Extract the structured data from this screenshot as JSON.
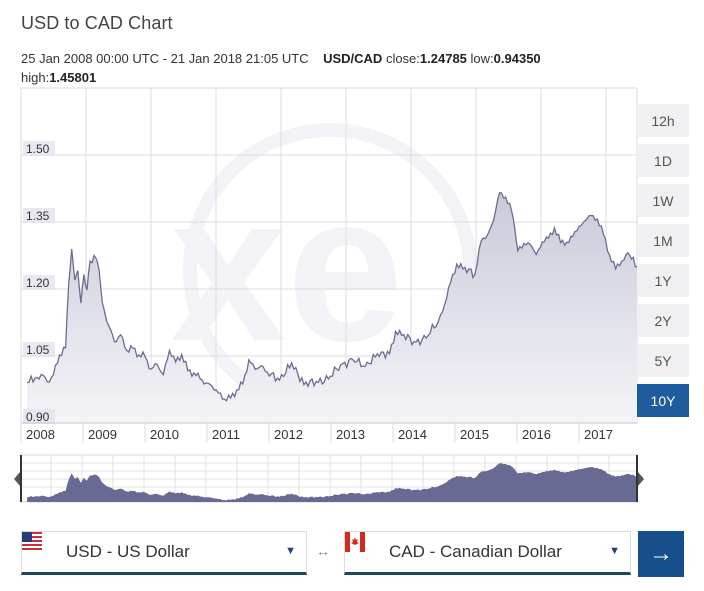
{
  "header": {
    "title": "USD to CAD Chart",
    "range_text": "25 Jan 2008 00:00 UTC - 21 Jan 2018 21:05 UTC",
    "pair": "USD/CAD",
    "close_label": "close:",
    "close_value": "1.24785",
    "low_label": "low:",
    "low_value": "0.94350",
    "high_label": "high:",
    "high_value": "1.45801"
  },
  "range_buttons": [
    {
      "label": "12h",
      "active": false
    },
    {
      "label": "1D",
      "active": false
    },
    {
      "label": "1W",
      "active": false
    },
    {
      "label": "1M",
      "active": false
    },
    {
      "label": "1Y",
      "active": false
    },
    {
      "label": "2Y",
      "active": false
    },
    {
      "label": "5Y",
      "active": false
    },
    {
      "label": "10Y",
      "active": true
    }
  ],
  "converter": {
    "from": {
      "code": "USD",
      "label": "USD - US Dollar",
      "flag": "us-flag-icon"
    },
    "swap_symbol": "↔",
    "to": {
      "code": "CAD",
      "label": "CAD - Canadian Dollar",
      "flag": "ca-flag-icon"
    },
    "go_symbol": "→",
    "caret": "▼"
  },
  "colors": {
    "line": "#6b6d8f",
    "fill_top": "#c9cad9",
    "fill_bottom": "#f4f4f8",
    "navigator_fill": "#686a94",
    "active_button": "#1f5c9e",
    "grid": "#dddddd",
    "ylabel_bg": "#e4e4f0"
  },
  "chart_data": {
    "type": "area",
    "title": "USD to CAD Chart",
    "xlabel": "",
    "ylabel": "",
    "ylim": [
      0.9,
      1.55
    ],
    "y_ticks": [
      "0.90",
      "1.05",
      "1.20",
      "1.35",
      "1.50"
    ],
    "x_ticks": [
      "2008",
      "2009",
      "2010",
      "2011",
      "2012",
      "2013",
      "2014",
      "2015",
      "2016",
      "2017"
    ],
    "grid": true,
    "legend": "none",
    "series": [
      {
        "name": "USD/CAD close",
        "x": [
          2008.07,
          2008.2,
          2008.3,
          2008.4,
          2008.5,
          2008.6,
          2008.7,
          2008.75,
          2008.8,
          2008.85,
          2008.9,
          2008.95,
          2009.0,
          2009.05,
          2009.1,
          2009.2,
          2009.25,
          2009.3,
          2009.4,
          2009.5,
          2009.6,
          2009.7,
          2009.8,
          2009.9,
          2010.0,
          2010.1,
          2010.2,
          2010.3,
          2010.4,
          2010.5,
          2010.6,
          2010.7,
          2010.8,
          2010.9,
          2011.0,
          2011.1,
          2011.2,
          2011.3,
          2011.4,
          2011.5,
          2011.6,
          2011.7,
          2011.8,
          2011.9,
          2012.0,
          2012.2,
          2012.4,
          2012.6,
          2012.8,
          2013.0,
          2013.2,
          2013.4,
          2013.6,
          2013.8,
          2014.0,
          2014.1,
          2014.2,
          2014.4,
          2014.6,
          2014.8,
          2014.9,
          2015.0,
          2015.1,
          2015.2,
          2015.4,
          2015.5,
          2015.6,
          2015.7,
          2015.8,
          2015.9,
          2016.0,
          2016.05,
          2016.1,
          2016.2,
          2016.3,
          2016.4,
          2016.5,
          2016.6,
          2016.7,
          2016.8,
          2016.9,
          2017.0,
          2017.1,
          2017.2,
          2017.3,
          2017.4,
          2017.5,
          2017.6,
          2017.7,
          2017.8,
          2017.9,
          2018.05
        ],
        "values": [
          0.99,
          1.0,
          1.01,
          0.99,
          1.01,
          1.05,
          1.07,
          1.21,
          1.29,
          1.22,
          1.24,
          1.17,
          1.23,
          1.2,
          1.26,
          1.27,
          1.24,
          1.17,
          1.12,
          1.08,
          1.1,
          1.06,
          1.07,
          1.05,
          1.05,
          1.02,
          1.03,
          1.01,
          1.06,
          1.04,
          1.05,
          1.02,
          1.01,
          1.0,
          0.99,
          0.98,
          0.97,
          0.95,
          0.96,
          0.97,
          0.99,
          1.04,
          1.02,
          1.03,
          1.01,
          1.0,
          1.03,
          0.99,
          0.99,
          1.0,
          1.03,
          1.04,
          1.03,
          1.05,
          1.06,
          1.1,
          1.1,
          1.08,
          1.09,
          1.13,
          1.16,
          1.22,
          1.25,
          1.25,
          1.23,
          1.31,
          1.32,
          1.35,
          1.42,
          1.4,
          1.38,
          1.33,
          1.29,
          1.3,
          1.3,
          1.28,
          1.3,
          1.32,
          1.33,
          1.31,
          1.3,
          1.32,
          1.34,
          1.35,
          1.37,
          1.35,
          1.33,
          1.27,
          1.25,
          1.26,
          1.28,
          1.25
        ]
      }
    ]
  }
}
